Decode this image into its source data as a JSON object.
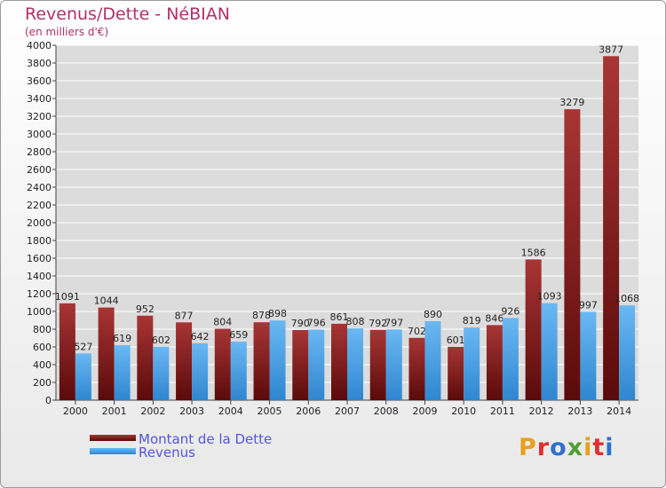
{
  "title": "Revenus/Dette - NéBIAN",
  "subtitle": "(en milliers d'€)",
  "logo": {
    "text": "Proxiti",
    "letters": [
      "P",
      "r",
      "o",
      "x",
      "i",
      "t",
      "i"
    ],
    "colors": [
      "#e8a020",
      "#e03030",
      "#3070d0",
      "#50a030",
      "#e8a020",
      "#e03030",
      "#3070d0"
    ]
  },
  "colors": {
    "debt_dark": "#5a0a0a",
    "debt_light": "#a83535",
    "revenue_dark": "#2f86cf",
    "revenue_light": "#6ab8f3",
    "title": "#b0306a",
    "legend_text": "#5555e0",
    "grid": "#ffffff"
  },
  "chart_data": {
    "type": "bar",
    "title": "Revenus/Dette - NéBIAN",
    "ylabel": "(en milliers d'€)",
    "xlabel": "",
    "categories": [
      "2000",
      "2001",
      "2002",
      "2003",
      "2004",
      "2005",
      "2006",
      "2007",
      "2008",
      "2009",
      "2010",
      "2011",
      "2012",
      "2013",
      "2014"
    ],
    "series": [
      {
        "name": "Montant de la Dette",
        "values": [
          1091,
          1044,
          952,
          877,
          804,
          878,
          790,
          861,
          792,
          702,
          601,
          846,
          1586,
          3279,
          3877
        ]
      },
      {
        "name": "Revenus",
        "values": [
          527,
          619,
          602,
          642,
          659,
          898,
          796,
          808,
          797,
          890,
          819,
          926,
          1093,
          997,
          1068
        ]
      }
    ],
    "ylim": [
      0,
      4000
    ],
    "yticks": [
      0,
      200,
      400,
      600,
      800,
      1000,
      1200,
      1400,
      1600,
      1800,
      2000,
      2200,
      2400,
      2600,
      2800,
      3000,
      3200,
      3400,
      3600,
      3800,
      4000
    ],
    "grid": true,
    "legend_position": "bottom-left"
  }
}
